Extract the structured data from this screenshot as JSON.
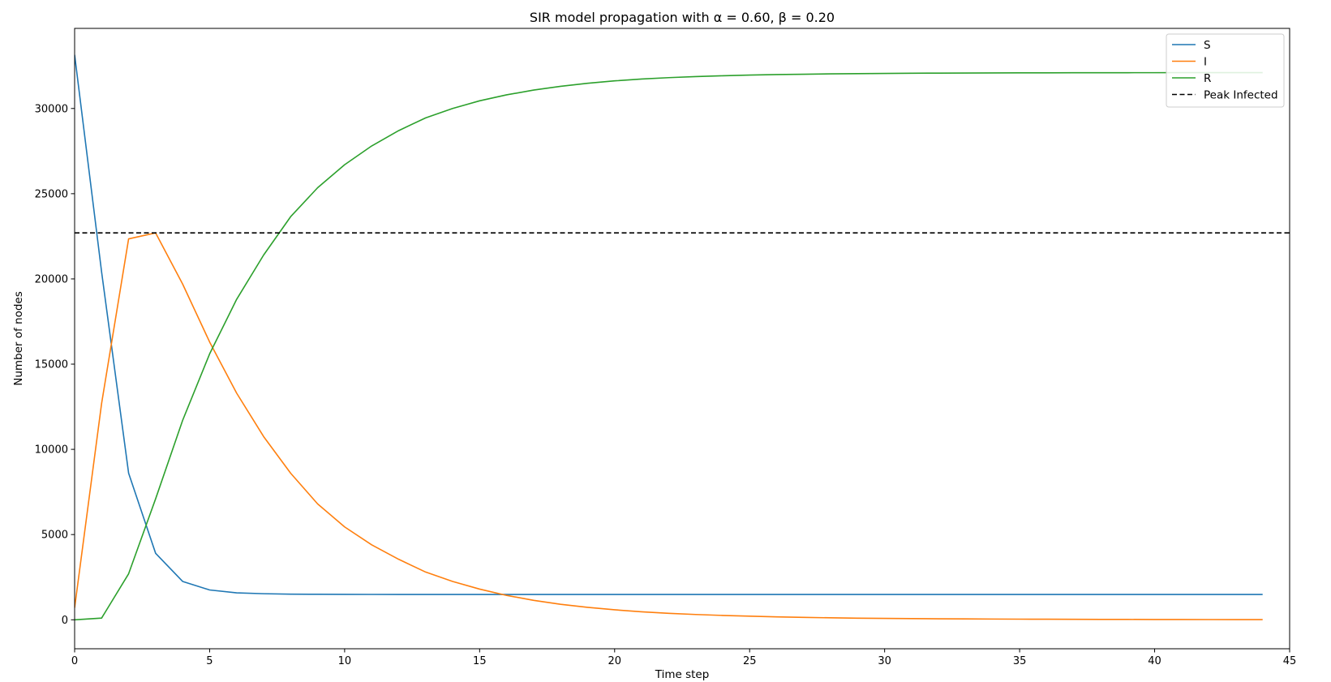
{
  "chart_data": {
    "type": "line",
    "title": "SIR model propagation with α = 0.60, β = 0.20",
    "xlabel": "Time step",
    "ylabel": "Number of nodes",
    "xlim": [
      0,
      45
    ],
    "ylim": [
      -1700,
      34700
    ],
    "xticks": [
      0,
      5,
      10,
      15,
      20,
      25,
      30,
      35,
      40,
      45
    ],
    "yticks": [
      0,
      5000,
      10000,
      15000,
      20000,
      25000,
      30000
    ],
    "grid": false,
    "legend_position": "top-right",
    "x": [
      0,
      1,
      2,
      3,
      4,
      5,
      6,
      7,
      8,
      9,
      10,
      11,
      12,
      13,
      14,
      15,
      16,
      17,
      18,
      19,
      20,
      21,
      22,
      23,
      24,
      25,
      26,
      27,
      28,
      29,
      30,
      31,
      32,
      33,
      34,
      35,
      36,
      37,
      38,
      39,
      40,
      41,
      42,
      43,
      44
    ],
    "series": [
      {
        "name": "S",
        "color": "#1f77b4",
        "style": "solid",
        "values": [
          33150,
          20400,
          8600,
          3900,
          2250,
          1750,
          1580,
          1530,
          1505,
          1495,
          1490,
          1488,
          1487,
          1486,
          1486,
          1486,
          1486,
          1486,
          1486,
          1486,
          1486,
          1486,
          1486,
          1486,
          1486,
          1486,
          1486,
          1486,
          1486,
          1486,
          1486,
          1486,
          1486,
          1486,
          1486,
          1486,
          1486,
          1486,
          1486,
          1486,
          1486,
          1486,
          1486,
          1486,
          1486
        ]
      },
      {
        "name": "I",
        "color": "#ff7f0e",
        "style": "solid",
        "values": [
          700,
          12700,
          22350,
          22700,
          19700,
          16300,
          13300,
          10750,
          8600,
          6800,
          5450,
          4400,
          3550,
          2800,
          2250,
          1800,
          1430,
          1140,
          910,
          730,
          585,
          470,
          380,
          310,
          255,
          210,
          170,
          140,
          115,
          95,
          80,
          68,
          58,
          50,
          43,
          37,
          32,
          28,
          24,
          20,
          17,
          15,
          13,
          11,
          10
        ]
      },
      {
        "name": "R",
        "color": "#2ca02c",
        "style": "solid",
        "values": [
          0,
          100,
          2700,
          7100,
          11700,
          15600,
          18800,
          21400,
          23650,
          25350,
          26700,
          27800,
          28700,
          29450,
          30000,
          30450,
          30800,
          31080,
          31300,
          31480,
          31620,
          31730,
          31810,
          31870,
          31920,
          31960,
          31990,
          32010,
          32030,
          32045,
          32058,
          32068,
          32076,
          32082,
          32087,
          32091,
          32094,
          32097,
          32099,
          32100,
          32101,
          32102,
          32103,
          32104,
          32104
        ]
      }
    ],
    "hlines": [
      {
        "name": "Peak Infected",
        "y": 22700,
        "color": "#000000",
        "style": "dashed"
      }
    ]
  }
}
